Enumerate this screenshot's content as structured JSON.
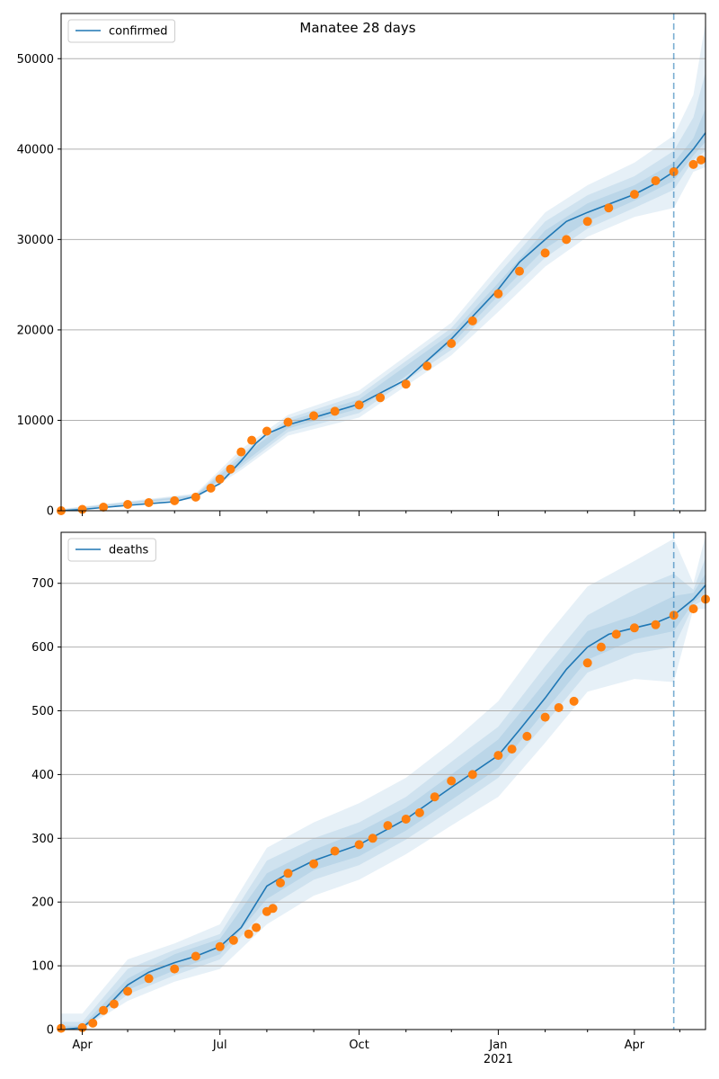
{
  "title": "Manatee 28 days",
  "colors": {
    "fit_line": "#1f77b4",
    "band": "#1f77b4",
    "observed": "#ff7f0e",
    "grid": "#b0b0b0",
    "forecast_marker": "#1f77b4"
  },
  "x_axis": {
    "start": "2020-03-18",
    "end": "2021-05-18",
    "forecast_start": "2021-04-27",
    "major_ticks": [
      {
        "date": "2020-04-01",
        "label": "Apr",
        "sublabel": ""
      },
      {
        "date": "2020-07-01",
        "label": "Jul",
        "sublabel": ""
      },
      {
        "date": "2020-10-01",
        "label": "Oct",
        "sublabel": ""
      },
      {
        "date": "2021-01-01",
        "label": "Jan",
        "sublabel": "2021"
      },
      {
        "date": "2021-04-01",
        "label": "Apr",
        "sublabel": ""
      }
    ],
    "minor_ticks": [
      "2020-05-01",
      "2020-06-01",
      "2020-08-01",
      "2020-09-01",
      "2020-11-01",
      "2020-12-01",
      "2021-02-01",
      "2021-03-01",
      "2021-05-01"
    ]
  },
  "chart_data": [
    {
      "type": "line",
      "legend": "confirmed",
      "legend_position": "upper-left",
      "grid": "y",
      "ylim": [
        0,
        55000
      ],
      "yticks": [
        0,
        10000,
        20000,
        30000,
        40000,
        50000
      ],
      "fit": {
        "name": "confirmed",
        "x": [
          "2020-03-18",
          "2020-04-01",
          "2020-05-01",
          "2020-06-01",
          "2020-06-15",
          "2020-07-01",
          "2020-07-15",
          "2020-07-25",
          "2020-08-01",
          "2020-08-15",
          "2020-09-01",
          "2020-10-01",
          "2020-11-01",
          "2020-12-01",
          "2021-01-01",
          "2021-01-15",
          "2021-02-01",
          "2021-02-15",
          "2021-03-01",
          "2021-04-01",
          "2021-04-15",
          "2021-04-27",
          "2021-05-10",
          "2021-05-18"
        ],
        "y": [
          0,
          150,
          600,
          1000,
          1600,
          3000,
          5500,
          7500,
          8500,
          9500,
          10300,
          11800,
          14500,
          19000,
          24500,
          27500,
          30000,
          32000,
          33000,
          35000,
          36200,
          37500,
          40000,
          41800
        ]
      },
      "bands": [
        {
          "x": [
            "2020-03-18",
            "2020-06-15",
            "2020-07-15",
            "2020-08-15",
            "2020-10-01",
            "2020-12-01",
            "2021-01-01",
            "2021-02-01",
            "2021-03-01",
            "2021-04-01",
            "2021-04-27",
            "2021-05-10",
            "2021-05-18"
          ],
          "lower": [
            0,
            1300,
            4500,
            8300,
            10300,
            17200,
            22000,
            27000,
            30300,
            32500,
            33500,
            37500,
            38000
          ],
          "upper": [
            200,
            1900,
            6800,
            10600,
            13300,
            20800,
            27000,
            33000,
            36000,
            38500,
            41500,
            46000,
            54000
          ]
        },
        {
          "x": [
            "2020-03-18",
            "2020-06-15",
            "2020-07-15",
            "2020-08-15",
            "2020-10-01",
            "2020-12-01",
            "2021-01-01",
            "2021-02-01",
            "2021-03-01",
            "2021-04-01",
            "2021-04-27",
            "2021-05-10",
            "2021-05-18"
          ],
          "lower": [
            0,
            1400,
            4800,
            8700,
            10800,
            17800,
            23000,
            28000,
            31200,
            33500,
            35500,
            38800,
            39800
          ],
          "upper": [
            150,
            1800,
            6300,
            10200,
            12800,
            20200,
            26200,
            32000,
            34900,
            37000,
            39800,
            43500,
            48500
          ]
        },
        {
          "x": [
            "2020-03-18",
            "2020-06-15",
            "2020-07-15",
            "2020-08-15",
            "2020-10-01",
            "2020-12-01",
            "2021-01-01",
            "2021-02-01",
            "2021-03-01",
            "2021-04-01",
            "2021-04-27",
            "2021-05-10",
            "2021-05-18"
          ],
          "lower": [
            0,
            1500,
            5100,
            9100,
            11300,
            18400,
            23800,
            29000,
            32000,
            34300,
            36500,
            39300,
            40800
          ],
          "upper": [
            100,
            1700,
            5900,
            9900,
            12300,
            19600,
            25200,
            31000,
            34000,
            36000,
            38500,
            41200,
            44500
          ]
        }
      ],
      "observed": {
        "name": "confirmed",
        "x": [
          "2020-03-18",
          "2020-04-01",
          "2020-04-15",
          "2020-05-01",
          "2020-05-15",
          "2020-06-01",
          "2020-06-15",
          "2020-06-25",
          "2020-07-01",
          "2020-07-08",
          "2020-07-15",
          "2020-07-22",
          "2020-08-01",
          "2020-08-15",
          "2020-09-01",
          "2020-09-15",
          "2020-10-01",
          "2020-10-15",
          "2020-11-01",
          "2020-11-15",
          "2020-12-01",
          "2020-12-15",
          "2021-01-01",
          "2021-01-15",
          "2021-02-01",
          "2021-02-15",
          "2021-03-01",
          "2021-03-15",
          "2021-04-01",
          "2021-04-15",
          "2021-04-27",
          "2021-05-10",
          "2021-05-15"
        ],
        "y": [
          0,
          150,
          400,
          700,
          900,
          1100,
          1500,
          2500,
          3500,
          4600,
          6500,
          7800,
          8800,
          9800,
          10500,
          11000,
          11700,
          12500,
          14000,
          16000,
          18500,
          21000,
          24000,
          26500,
          28500,
          30000,
          32000,
          33500,
          35000,
          36500,
          37500,
          38300,
          38800
        ]
      }
    },
    {
      "type": "line",
      "legend": "deaths",
      "legend_position": "upper-left",
      "grid": "y",
      "ylim": [
        0,
        780
      ],
      "yticks": [
        0,
        100,
        200,
        300,
        400,
        500,
        600,
        700
      ],
      "fit": {
        "name": "deaths",
        "x": [
          "2020-03-18",
          "2020-04-01",
          "2020-04-15",
          "2020-05-01",
          "2020-05-15",
          "2020-06-01",
          "2020-06-15",
          "2020-07-01",
          "2020-07-15",
          "2020-08-01",
          "2020-08-15",
          "2020-09-01",
          "2020-10-01",
          "2020-11-01",
          "2020-12-01",
          "2021-01-01",
          "2021-01-15",
          "2021-02-01",
          "2021-02-15",
          "2021-03-01",
          "2021-03-15",
          "2021-04-01",
          "2021-04-15",
          "2021-04-27",
          "2021-05-10",
          "2021-05-18"
        ],
        "y": [
          0,
          3,
          30,
          70,
          90,
          105,
          115,
          130,
          160,
          225,
          245,
          265,
          290,
          330,
          380,
          430,
          470,
          520,
          565,
          600,
          620,
          630,
          638,
          650,
          675,
          697
        ]
      },
      "bands": [
        {
          "x": [
            "2020-03-18",
            "2020-04-01",
            "2020-05-01",
            "2020-06-01",
            "2020-07-01",
            "2020-08-01",
            "2020-09-01",
            "2020-10-01",
            "2020-11-01",
            "2020-12-01",
            "2021-01-01",
            "2021-02-01",
            "2021-03-01",
            "2021-04-01",
            "2021-04-27",
            "2021-05-10",
            "2021-05-18"
          ],
          "lower": [
            0,
            0,
            45,
            75,
            95,
            165,
            210,
            235,
            275,
            320,
            365,
            450,
            530,
            550,
            545,
            660,
            660
          ],
          "upper": [
            25,
            25,
            110,
            135,
            165,
            285,
            325,
            355,
            395,
            450,
            515,
            615,
            695,
            735,
            770,
            700,
            775
          ]
        },
        {
          "x": [
            "2020-03-18",
            "2020-04-01",
            "2020-05-01",
            "2020-06-01",
            "2020-07-01",
            "2020-08-01",
            "2020-09-01",
            "2020-10-01",
            "2020-11-01",
            "2020-12-01",
            "2021-01-01",
            "2021-02-01",
            "2021-03-01",
            "2021-04-01",
            "2021-04-27",
            "2021-05-10",
            "2021-05-18"
          ],
          "lower": [
            0,
            0,
            55,
            85,
            110,
            190,
            235,
            258,
            298,
            345,
            395,
            480,
            560,
            590,
            600,
            665,
            675
          ],
          "upper": [
            12,
            12,
            95,
            125,
            150,
            265,
            300,
            325,
            365,
            420,
            475,
            570,
            650,
            690,
            715,
            690,
            740
          ]
        },
        {
          "x": [
            "2020-03-18",
            "2020-04-01",
            "2020-05-01",
            "2020-06-01",
            "2020-07-01",
            "2020-08-01",
            "2020-09-01",
            "2020-10-01",
            "2020-11-01",
            "2020-12-01",
            "2021-01-01",
            "2021-02-01",
            "2021-03-01",
            "2021-04-01",
            "2021-04-27",
            "2021-05-10",
            "2021-05-18"
          ],
          "lower": [
            0,
            0,
            62,
            93,
            118,
            205,
            250,
            272,
            312,
            360,
            410,
            500,
            580,
            612,
            625,
            670,
            685
          ],
          "upper": [
            6,
            6,
            80,
            118,
            142,
            245,
            282,
            310,
            348,
            400,
            455,
            545,
            625,
            650,
            680,
            685,
            715
          ]
        }
      ],
      "observed": {
        "name": "deaths",
        "x": [
          "2020-03-18",
          "2020-04-01",
          "2020-04-08",
          "2020-04-15",
          "2020-04-22",
          "2020-05-01",
          "2020-05-15",
          "2020-06-01",
          "2020-06-15",
          "2020-07-01",
          "2020-07-10",
          "2020-07-20",
          "2020-07-25",
          "2020-08-01",
          "2020-08-05",
          "2020-08-10",
          "2020-08-15",
          "2020-09-01",
          "2020-09-15",
          "2020-10-01",
          "2020-10-10",
          "2020-10-20",
          "2020-11-01",
          "2020-11-10",
          "2020-11-20",
          "2020-12-01",
          "2020-12-15",
          "2021-01-01",
          "2021-01-10",
          "2021-01-20",
          "2021-02-01",
          "2021-02-10",
          "2021-02-20",
          "2021-03-01",
          "2021-03-10",
          "2021-03-20",
          "2021-04-01",
          "2021-04-15",
          "2021-04-27",
          "2021-05-10",
          "2021-05-18"
        ],
        "y": [
          2,
          3,
          10,
          30,
          40,
          60,
          80,
          95,
          115,
          130,
          140,
          150,
          160,
          185,
          190,
          230,
          245,
          260,
          280,
          290,
          300,
          320,
          330,
          340,
          365,
          390,
          400,
          430,
          440,
          460,
          490,
          505,
          515,
          575,
          600,
          620,
          630,
          635,
          650,
          660,
          675
        ]
      }
    }
  ]
}
